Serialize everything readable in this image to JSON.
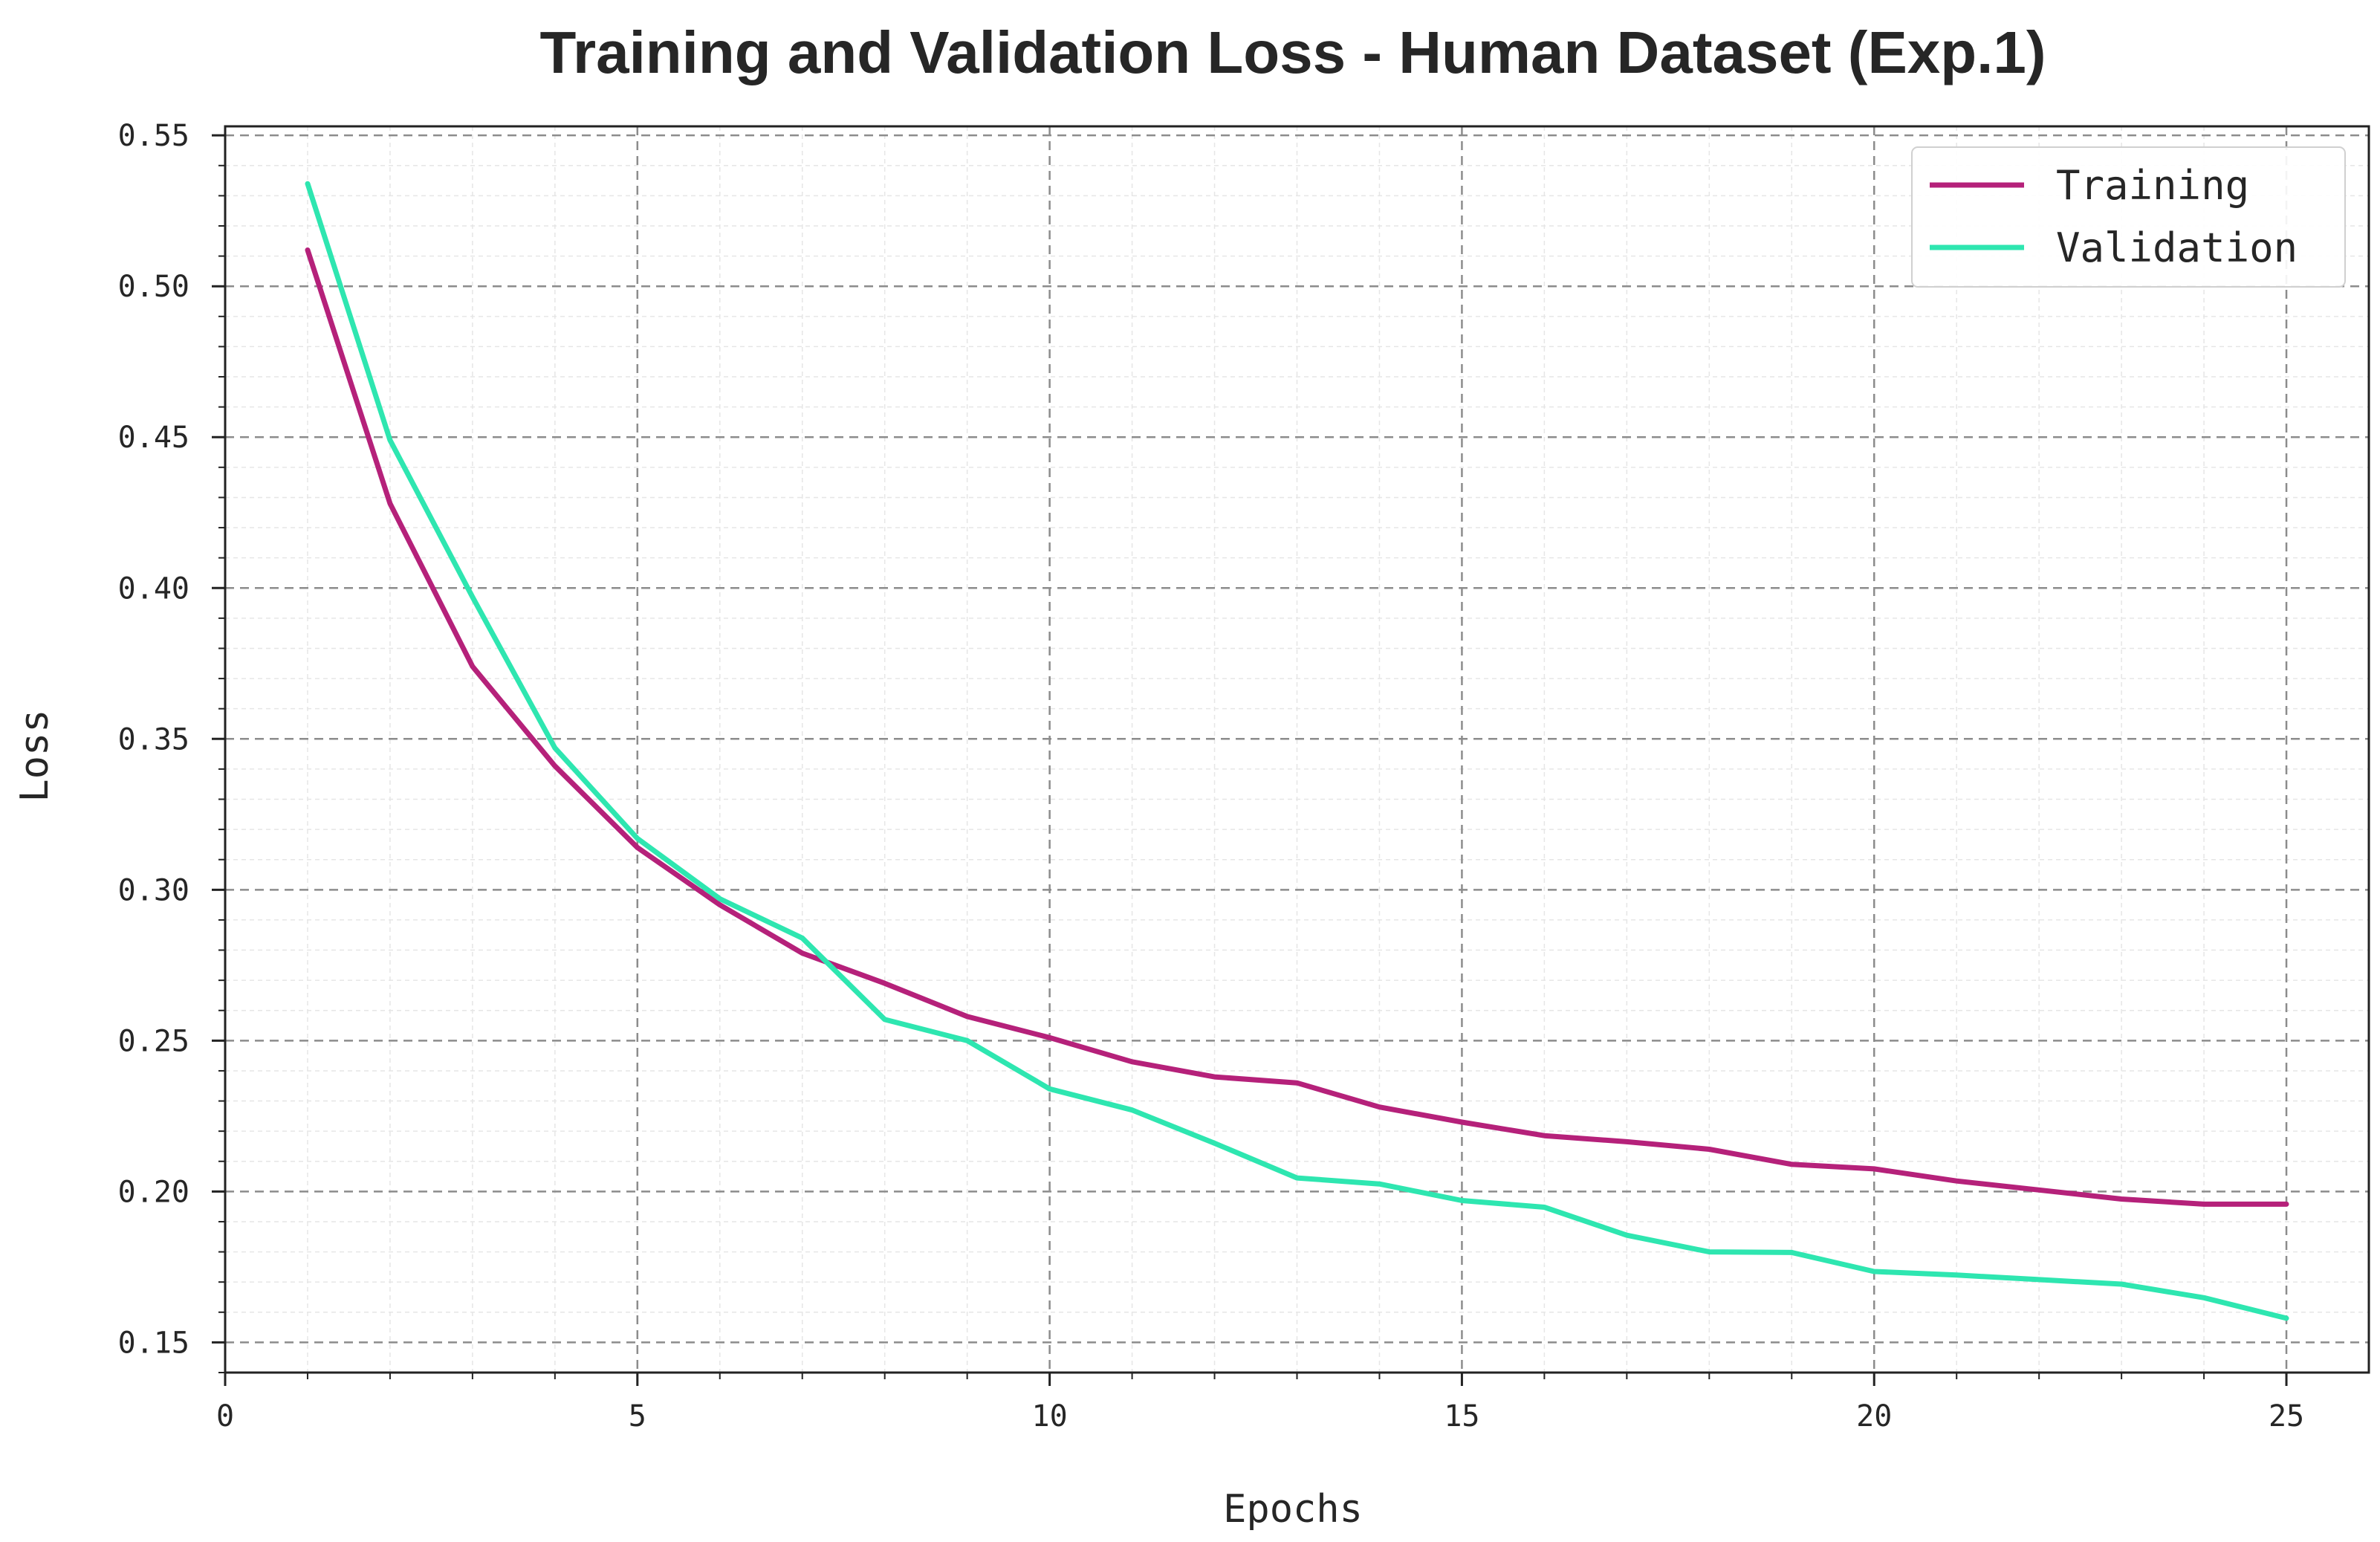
{
  "chart_data": {
    "type": "line",
    "title": "Training and Validation Loss - Human Dataset (Exp.1)",
    "xlabel": "Epochs",
    "ylabel": "Loss",
    "xlim": [
      0,
      26
    ],
    "ylim": [
      0.14,
      0.553
    ],
    "x_ticks": [
      0,
      5,
      10,
      15,
      20,
      25
    ],
    "y_ticks": [
      0.15,
      0.2,
      0.25,
      0.3,
      0.35,
      0.4,
      0.45,
      0.5,
      0.55
    ],
    "x_tick_labels": [
      "0",
      "5",
      "10",
      "15",
      "20",
      "25"
    ],
    "y_tick_labels": [
      "0.15",
      "0.20",
      "0.25",
      "0.30",
      "0.35",
      "0.40",
      "0.45",
      "0.50",
      "0.55"
    ],
    "grid": true,
    "legend_position": "top-right",
    "x": [
      1,
      2,
      3,
      4,
      5,
      6,
      7,
      8,
      9,
      10,
      11,
      12,
      13,
      14,
      15,
      16,
      17,
      18,
      19,
      20,
      21,
      22,
      23,
      24,
      25
    ],
    "series": [
      {
        "name": "Training",
        "color": "#b5217a",
        "values": [
          0.512,
          0.428,
          0.374,
          0.341,
          0.314,
          0.295,
          0.279,
          0.269,
          0.258,
          0.251,
          0.243,
          0.238,
          0.236,
          0.228,
          0.223,
          0.2185,
          0.2165,
          0.214,
          0.209,
          0.2075,
          0.2035,
          0.2005,
          0.1975,
          0.1958,
          0.1958
        ]
      },
      {
        "name": "Validation",
        "color": "#2ee6b0",
        "values": [
          0.534,
          0.449,
          0.397,
          0.347,
          0.317,
          0.297,
          0.284,
          0.257,
          0.25,
          0.234,
          0.227,
          0.216,
          0.2045,
          0.2025,
          0.197,
          0.1948,
          0.1855,
          0.18,
          0.1798,
          0.1735,
          0.1723,
          0.1708,
          0.1693,
          0.1648,
          0.158
        ]
      }
    ]
  }
}
